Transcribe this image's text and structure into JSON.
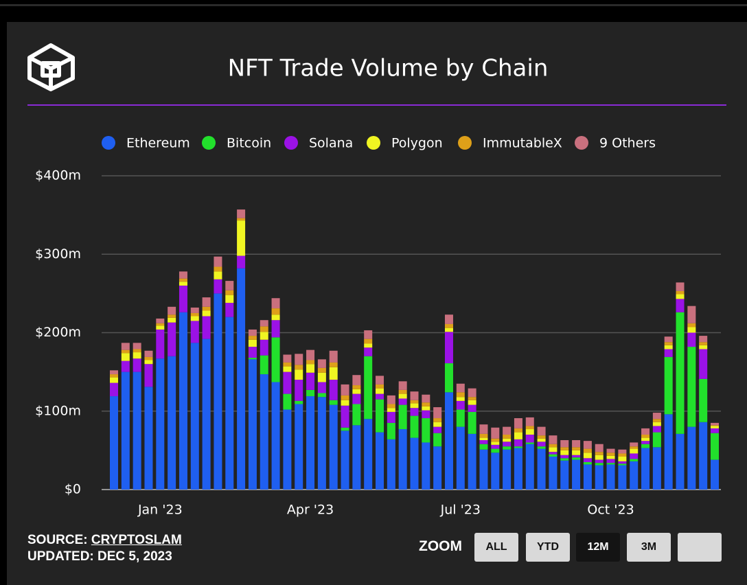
{
  "chart_data": {
    "type": "bar",
    "stacked": true,
    "title": "NFT Trade Volume by Chain",
    "categories": [
      null,
      null,
      null,
      null,
      "Jan '23",
      null,
      null,
      null,
      null,
      null,
      null,
      null,
      null,
      null,
      null,
      null,
      null,
      "Apr '23",
      null,
      null,
      null,
      null,
      null,
      null,
      null,
      null,
      null,
      null,
      null,
      null,
      "Jul '23",
      null,
      null,
      null,
      null,
      null,
      null,
      null,
      null,
      null,
      null,
      null,
      null,
      "Oct '23",
      null,
      null,
      null,
      null,
      null,
      null,
      null,
      null,
      null
    ],
    "series": [
      {
        "name": "Ethereum",
        "color": "#1f5ff0",
        "values": [
          119,
          150,
          150,
          131,
          167,
          170,
          226,
          187,
          192,
          250,
          220,
          282,
          166,
          147,
          137,
          102,
          109,
          119,
          118,
          108,
          75,
          82,
          90,
          73,
          64,
          77,
          66,
          60,
          55,
          124,
          80,
          71,
          51,
          47,
          51,
          53,
          58,
          52,
          42,
          37,
          38,
          32,
          31,
          32,
          31,
          36,
          53,
          54,
          96,
          71,
          80,
          86,
          38
        ]
      },
      {
        "name": "Bitcoin",
        "color": "#22e02c",
        "values": [
          0,
          0,
          0,
          0,
          0,
          0,
          0,
          0,
          0,
          0,
          0,
          0,
          2,
          24,
          57,
          20,
          4,
          8,
          5,
          6,
          4,
          27,
          80,
          42,
          21,
          31,
          28,
          31,
          17,
          37,
          22,
          28,
          7,
          5,
          4,
          2,
          2,
          3,
          3,
          3,
          3,
          3,
          3,
          2,
          2,
          3,
          5,
          19,
          73,
          155,
          102,
          55,
          34
        ]
      },
      {
        "name": "Solana",
        "color": "#9b12e6",
        "values": [
          17,
          14,
          17,
          29,
          37,
          43,
          34,
          28,
          29,
          18,
          18,
          16,
          14,
          20,
          22,
          28,
          27,
          22,
          14,
          26,
          28,
          13,
          11,
          7,
          14,
          8,
          10,
          10,
          8,
          40,
          11,
          9,
          5,
          5,
          6,
          9,
          10,
          6,
          3,
          4,
          3,
          5,
          4,
          5,
          3,
          7,
          4,
          8,
          10,
          17,
          18,
          38,
          6
        ]
      },
      {
        "name": "Polygon",
        "color": "#f0f522",
        "values": [
          7,
          10,
          8,
          5,
          5,
          6,
          5,
          6,
          7,
          10,
          10,
          45,
          9,
          10,
          7,
          7,
          13,
          11,
          12,
          16,
          7,
          6,
          5,
          7,
          5,
          6,
          6,
          5,
          6,
          5,
          5,
          6,
          3,
          4,
          4,
          9,
          7,
          4,
          6,
          6,
          6,
          7,
          6,
          4,
          6,
          6,
          4,
          5,
          5,
          6,
          7,
          5,
          3
        ]
      },
      {
        "name": "ImmutableX",
        "color": "#dea019",
        "values": [
          4,
          4,
          4,
          4,
          3,
          4,
          4,
          4,
          5,
          6,
          6,
          3,
          5,
          7,
          8,
          5,
          6,
          5,
          6,
          6,
          6,
          5,
          6,
          5,
          5,
          5,
          4,
          5,
          5,
          5,
          6,
          4,
          5,
          4,
          5,
          5,
          4,
          4,
          4,
          4,
          4,
          5,
          4,
          4,
          4,
          3,
          4,
          4,
          4,
          4,
          5,
          4,
          1
        ]
      },
      {
        "name": "9 Others",
        "color": "#c9707e",
        "values": [
          5,
          9,
          8,
          8,
          6,
          10,
          9,
          7,
          12,
          13,
          12,
          11,
          8,
          8,
          13,
          10,
          14,
          13,
          11,
          15,
          14,
          13,
          11,
          11,
          11,
          11,
          11,
          10,
          14,
          12,
          11,
          11,
          12,
          14,
          10,
          13,
          11,
          11,
          11,
          9,
          9,
          10,
          10,
          5,
          5,
          5,
          8,
          8,
          7,
          11,
          22,
          8,
          3
        ]
      }
    ],
    "ylim": [
      0,
      400
    ],
    "yticks": [
      {
        "value": 0,
        "label": "$0"
      },
      {
        "value": 100,
        "label": "$100m"
      },
      {
        "value": 200,
        "label": "$200m"
      },
      {
        "value": 300,
        "label": "$300m"
      },
      {
        "value": 400,
        "label": "$400m"
      }
    ],
    "grid": true,
    "legend": "top"
  },
  "footer": {
    "source_label": "SOURCE:",
    "source": "CRYPTOSLAM",
    "updated": "UPDATED: DEC 5, 2023"
  },
  "zoom": {
    "label": "ZOOM",
    "buttons": [
      "ALL",
      "YTD",
      "12M",
      "3M"
    ]
  }
}
